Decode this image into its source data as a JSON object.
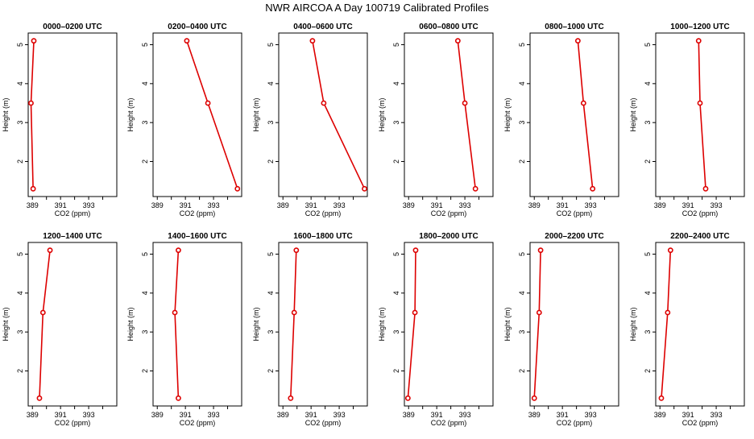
{
  "page": {
    "title": "NWR AIRCOA A  Day 100719  Calibrated Profiles"
  },
  "chart_data": {
    "type": "line",
    "xlabel": "CO2 (ppm)",
    "ylabel": "Height (m)",
    "xlim": [
      388.7,
      395.0
    ],
    "ylim": [
      1.1,
      5.3
    ],
    "xticks": [
      389,
      390,
      391,
      392,
      393,
      394
    ],
    "xtick_labels": [
      "389",
      "",
      "391",
      "",
      "393",
      ""
    ],
    "yticks": [
      2,
      3,
      4,
      5
    ],
    "ytick_labels": [
      "2",
      "3",
      "4",
      "5"
    ],
    "line_color": "#dd0000",
    "marker_color": "#dd0000",
    "panels": [
      {
        "title": "0000–0200 UTC",
        "x": [
          389.1,
          388.9,
          389.05
        ],
        "y": [
          5.1,
          3.5,
          1.3
        ]
      },
      {
        "title": "0200–0400 UTC",
        "x": [
          391.1,
          392.6,
          394.7
        ],
        "y": [
          5.1,
          3.5,
          1.3
        ]
      },
      {
        "title": "0400–0600 UTC",
        "x": [
          391.1,
          391.9,
          394.8
        ],
        "y": [
          5.1,
          3.5,
          1.3
        ]
      },
      {
        "title": "0600–0800 UTC",
        "x": [
          392.5,
          393.0,
          393.75
        ],
        "y": [
          5.1,
          3.5,
          1.3
        ]
      },
      {
        "title": "0800–1000 UTC",
        "x": [
          392.1,
          392.5,
          393.15
        ],
        "y": [
          5.1,
          3.5,
          1.3
        ]
      },
      {
        "title": "1000–1200 UTC",
        "x": [
          391.75,
          391.85,
          392.25
        ],
        "y": [
          5.1,
          3.5,
          1.3
        ]
      },
      {
        "title": "1200–1400 UTC",
        "x": [
          390.25,
          389.75,
          389.5
        ],
        "y": [
          5.1,
          3.5,
          1.3
        ]
      },
      {
        "title": "1400–1600 UTC",
        "x": [
          390.5,
          390.25,
          390.5
        ],
        "y": [
          5.1,
          3.5,
          1.3
        ]
      },
      {
        "title": "1600–1800 UTC",
        "x": [
          389.95,
          389.8,
          389.55
        ],
        "y": [
          5.1,
          3.5,
          1.3
        ]
      },
      {
        "title": "1800–2000 UTC",
        "x": [
          389.5,
          389.45,
          388.95
        ],
        "y": [
          5.1,
          3.5,
          1.3
        ]
      },
      {
        "title": "2000–2200 UTC",
        "x": [
          389.45,
          389.35,
          389.0
        ],
        "y": [
          5.1,
          3.5,
          1.3
        ]
      },
      {
        "title": "2200–2400 UTC",
        "x": [
          389.75,
          389.55,
          389.1
        ],
        "y": [
          5.1,
          3.5,
          1.3
        ]
      }
    ]
  }
}
